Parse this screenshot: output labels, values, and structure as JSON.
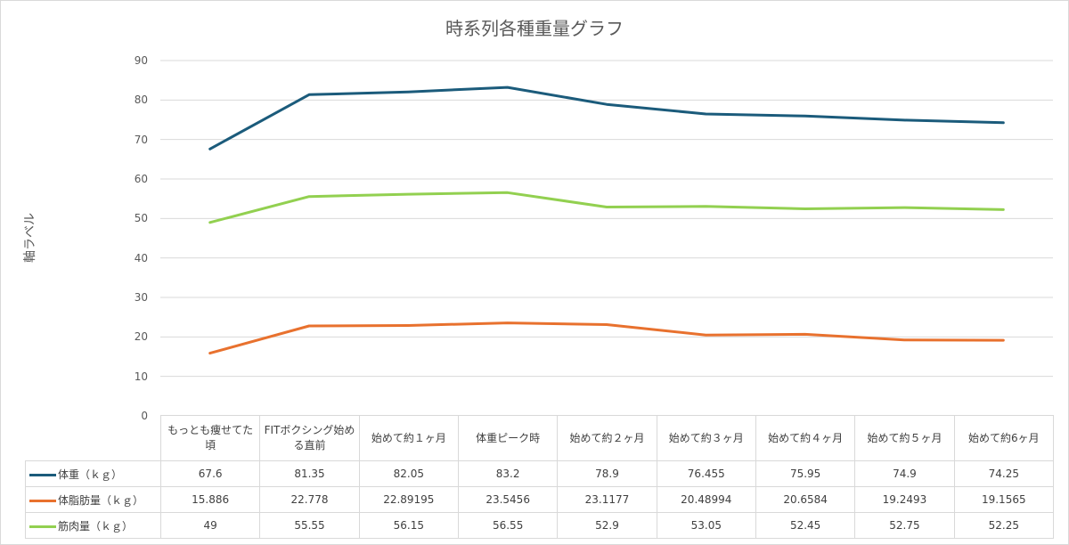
{
  "chart_data": {
    "type": "line",
    "title": "時系列各種重量グラフ",
    "ylabel": "軸ラベル",
    "xlabel": "",
    "ylim": [
      0,
      90
    ],
    "yticks": [
      "0",
      "10",
      "20",
      "30",
      "40",
      "50",
      "60",
      "70",
      "80",
      "90"
    ],
    "grid": true,
    "legend": "data-table",
    "categories": [
      "もっとも痩せてた頃",
      "FITボクシング始める直前",
      "始めて約１ヶ月",
      "体重ピーク時",
      "始めて約２ヶ月",
      "始めて約３ヶ月",
      "始めて約４ヶ月",
      "始めて約５ヶ月",
      "始めて約6ヶ月"
    ],
    "series": [
      {
        "name": "体重（ｋｇ）",
        "color": "#1b5b7b",
        "values": [
          67.6,
          81.35,
          82.05,
          83.2,
          78.9,
          76.455,
          75.95,
          74.9,
          74.25
        ],
        "labels": [
          "67.6",
          "81.35",
          "82.05",
          "83.2",
          "78.9",
          "76.455",
          "75.95",
          "74.9",
          "74.25"
        ]
      },
      {
        "name": "体脂肪量（ｋｇ）",
        "color": "#e8712e",
        "values": [
          15.886,
          22.778,
          22.89195,
          23.5456,
          23.1177,
          20.48994,
          20.6584,
          19.2493,
          19.1565
        ],
        "labels": [
          "15.886",
          "22.778",
          "22.89195",
          "23.5456",
          "23.1177",
          "20.48994",
          "20.6584",
          "19.2493",
          "19.1565"
        ]
      },
      {
        "name": "筋肉量（ｋｇ）",
        "color": "#92d050",
        "values": [
          49,
          55.55,
          56.15,
          56.55,
          52.9,
          53.05,
          52.45,
          52.75,
          52.25
        ],
        "labels": [
          "49",
          "55.55",
          "56.15",
          "56.55",
          "52.9",
          "53.05",
          "52.45",
          "52.75",
          "52.25"
        ]
      }
    ]
  }
}
